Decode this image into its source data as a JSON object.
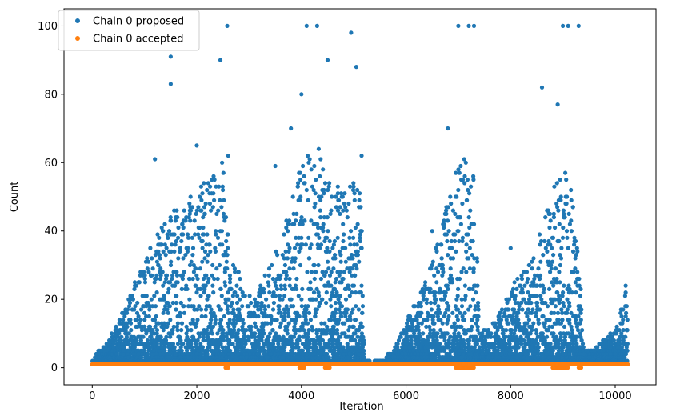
{
  "chart_data": {
    "type": "scatter",
    "title": "",
    "xlabel": "Iteration",
    "ylabel": "Count",
    "xlim": [
      -540,
      10780
    ],
    "ylim": [
      -5,
      105
    ],
    "x_ticks": [
      0,
      2000,
      4000,
      6000,
      8000,
      10000
    ],
    "y_ticks": [
      0,
      20,
      40,
      60,
      80,
      100
    ],
    "x_tick_labels": [
      "0",
      "2000",
      "4000",
      "6000",
      "8000",
      "10000"
    ],
    "y_tick_labels": [
      "0",
      "20",
      "40",
      "60",
      "80",
      "100"
    ],
    "grid": false,
    "legend_position": "top-left",
    "n_iterations": 10240,
    "series": [
      {
        "name": "Chain 0 proposed",
        "color": "#1f77b4",
        "marker": "circle",
        "description_points": [
          [
            0,
            1
          ],
          [
            500,
            3
          ],
          [
            1000,
            12
          ],
          [
            1200,
            61
          ],
          [
            1500,
            91
          ],
          [
            1500,
            83
          ],
          [
            2000,
            65
          ],
          [
            2450,
            90
          ],
          [
            2580,
            100
          ],
          [
            2600,
            62
          ],
          [
            2800,
            28
          ],
          [
            3000,
            16
          ],
          [
            3500,
            59
          ],
          [
            3800,
            70
          ],
          [
            4000,
            80
          ],
          [
            4100,
            100
          ],
          [
            4300,
            100
          ],
          [
            4500,
            90
          ],
          [
            4950,
            98
          ],
          [
            5050,
            88
          ],
          [
            5150,
            62
          ],
          [
            5200,
            2
          ],
          [
            5500,
            2
          ],
          [
            6000,
            8
          ],
          [
            6500,
            40
          ],
          [
            6800,
            70
          ],
          [
            7000,
            100
          ],
          [
            7200,
            100
          ],
          [
            7300,
            100
          ],
          [
            7400,
            10
          ],
          [
            8000,
            35
          ],
          [
            8600,
            82
          ],
          [
            8900,
            77
          ],
          [
            9000,
            100
          ],
          [
            9100,
            100
          ],
          [
            9300,
            100
          ],
          [
            9400,
            4
          ],
          [
            10000,
            10
          ],
          [
            10200,
            24
          ]
        ],
        "envelope": [
          [
            0,
            2
          ],
          [
            250,
            6
          ],
          [
            500,
            12
          ],
          [
            750,
            22
          ],
          [
            1000,
            30
          ],
          [
            1250,
            40
          ],
          [
            1500,
            45
          ],
          [
            1750,
            48
          ],
          [
            2000,
            52
          ],
          [
            2250,
            55
          ],
          [
            2500,
            60
          ],
          [
            2650,
            30
          ],
          [
            2800,
            28
          ],
          [
            3000,
            20
          ],
          [
            3250,
            25
          ],
          [
            3500,
            33
          ],
          [
            3750,
            45
          ],
          [
            4000,
            60
          ],
          [
            4250,
            65
          ],
          [
            4500,
            60
          ],
          [
            4750,
            50
          ],
          [
            5000,
            55
          ],
          [
            5150,
            50
          ],
          [
            5200,
            2
          ],
          [
            5500,
            2
          ],
          [
            5750,
            4
          ],
          [
            6000,
            12
          ],
          [
            6250,
            20
          ],
          [
            6500,
            30
          ],
          [
            6750,
            45
          ],
          [
            7000,
            60
          ],
          [
            7250,
            65
          ],
          [
            7350,
            40
          ],
          [
            7400,
            8
          ],
          [
            7600,
            12
          ],
          [
            7800,
            15
          ],
          [
            8000,
            22
          ],
          [
            8250,
            28
          ],
          [
            8500,
            35
          ],
          [
            8750,
            50
          ],
          [
            9000,
            60
          ],
          [
            9200,
            50
          ],
          [
            9350,
            20
          ],
          [
            9400,
            4
          ],
          [
            9700,
            6
          ],
          [
            10000,
            10
          ],
          [
            10240,
            24
          ]
        ]
      },
      {
        "name": "Chain 0 accepted",
        "color": "#ff7f0e",
        "marker": "circle",
        "value": 1,
        "zero_regions": [
          [
            2550,
            2600
          ],
          [
            3950,
            4050
          ],
          [
            4450,
            4550
          ],
          [
            6950,
            7300
          ],
          [
            8800,
            9100
          ],
          [
            9300,
            9350
          ]
        ]
      }
    ]
  }
}
